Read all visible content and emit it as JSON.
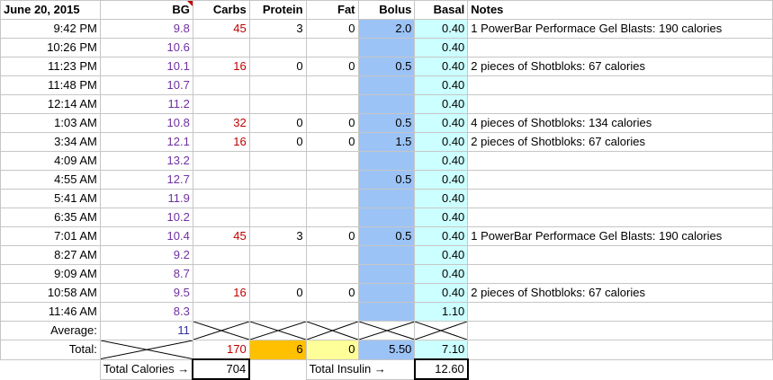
{
  "header": {
    "date": "June 20, 2015",
    "bg": "BG",
    "carbs": "Carbs",
    "protein": "Protein",
    "fat": "Fat",
    "bolus": "Bolus",
    "basal": "Basal",
    "notes": "Notes"
  },
  "rows": [
    {
      "time": "9:42 PM",
      "bg": "9.8",
      "carbs": "45",
      "protein": "3",
      "fat": "0",
      "bolus": "2.0",
      "basal": "0.40",
      "notes": "1 PowerBar Performace Gel Blasts: 190 calories"
    },
    {
      "time": "10:26 PM",
      "bg": "10.6",
      "carbs": "",
      "protein": "",
      "fat": "",
      "bolus": "",
      "basal": "0.40",
      "notes": ""
    },
    {
      "time": "11:23 PM",
      "bg": "10.1",
      "carbs": "16",
      "protein": "0",
      "fat": "0",
      "bolus": "0.5",
      "basal": "0.40",
      "notes": "2 pieces of Shotbloks: 67 calories"
    },
    {
      "time": "11:48 PM",
      "bg": "10.7",
      "carbs": "",
      "protein": "",
      "fat": "",
      "bolus": "",
      "basal": "0.40",
      "notes": ""
    },
    {
      "time": "12:14 AM",
      "bg": "11.2",
      "carbs": "",
      "protein": "",
      "fat": "",
      "bolus": "",
      "basal": "0.40",
      "notes": ""
    },
    {
      "time": "1:03 AM",
      "bg": "10.8",
      "carbs": "32",
      "protein": "0",
      "fat": "0",
      "bolus": "0.5",
      "basal": "0.40",
      "notes": "4 pieces of Shotbloks: 134 calories"
    },
    {
      "time": "3:34 AM",
      "bg": "12.1",
      "carbs": "16",
      "protein": "0",
      "fat": "0",
      "bolus": "1.5",
      "basal": "0.40",
      "notes": "2 pieces of Shotbloks: 67 calories"
    },
    {
      "time": "4:09 AM",
      "bg": "13.2",
      "carbs": "",
      "protein": "",
      "fat": "",
      "bolus": "",
      "basal": "0.40",
      "notes": ""
    },
    {
      "time": "4:55 AM",
      "bg": "12.7",
      "carbs": "",
      "protein": "",
      "fat": "",
      "bolus": "0.5",
      "basal": "0.40",
      "notes": ""
    },
    {
      "time": "5:41 AM",
      "bg": "11.9",
      "carbs": "",
      "protein": "",
      "fat": "",
      "bolus": "",
      "basal": "0.40",
      "notes": ""
    },
    {
      "time": "6:35 AM",
      "bg": "10.2",
      "carbs": "",
      "protein": "",
      "fat": "",
      "bolus": "",
      "basal": "0.40",
      "notes": ""
    },
    {
      "time": "7:01 AM",
      "bg": "10.4",
      "carbs": "45",
      "protein": "3",
      "fat": "0",
      "bolus": "0.5",
      "basal": "0.40",
      "notes": "1 PowerBar Performace Gel Blasts: 190 calories"
    },
    {
      "time": "8:27 AM",
      "bg": "9.2",
      "carbs": "",
      "protein": "",
      "fat": "",
      "bolus": "",
      "basal": "0.40",
      "notes": ""
    },
    {
      "time": "9:09 AM",
      "bg": "8.7",
      "carbs": "",
      "protein": "",
      "fat": "",
      "bolus": "",
      "basal": "0.40",
      "notes": ""
    },
    {
      "time": "10:58 AM",
      "bg": "9.5",
      "carbs": "16",
      "protein": "0",
      "fat": "0",
      "bolus": "",
      "basal": "0.40",
      "notes": "2 pieces of Shotbloks: 67 calories"
    },
    {
      "time": "11:46 AM",
      "bg": "8.3",
      "carbs": "",
      "protein": "",
      "fat": "",
      "bolus": "",
      "basal": "1.10",
      "notes": ""
    }
  ],
  "average": {
    "label": "Average:",
    "bg": "11"
  },
  "total": {
    "label": "Total:",
    "carbs": "170",
    "protein": "6",
    "fat": "0",
    "bolus": "5.50",
    "basal": "7.10"
  },
  "summary": {
    "calories_label": "Total Calories →",
    "calories": "704",
    "insulin_label": "Total Insulin →",
    "insulin": "12.60"
  },
  "colors": {
    "bolus_fill": "#9cc3f5",
    "basal_fill": "#ccffff",
    "protein_total_fill": "#ffc000",
    "fat_total_fill": "#ffff99",
    "bg_text": "#7030a0",
    "carbs_text": "#c00000"
  }
}
